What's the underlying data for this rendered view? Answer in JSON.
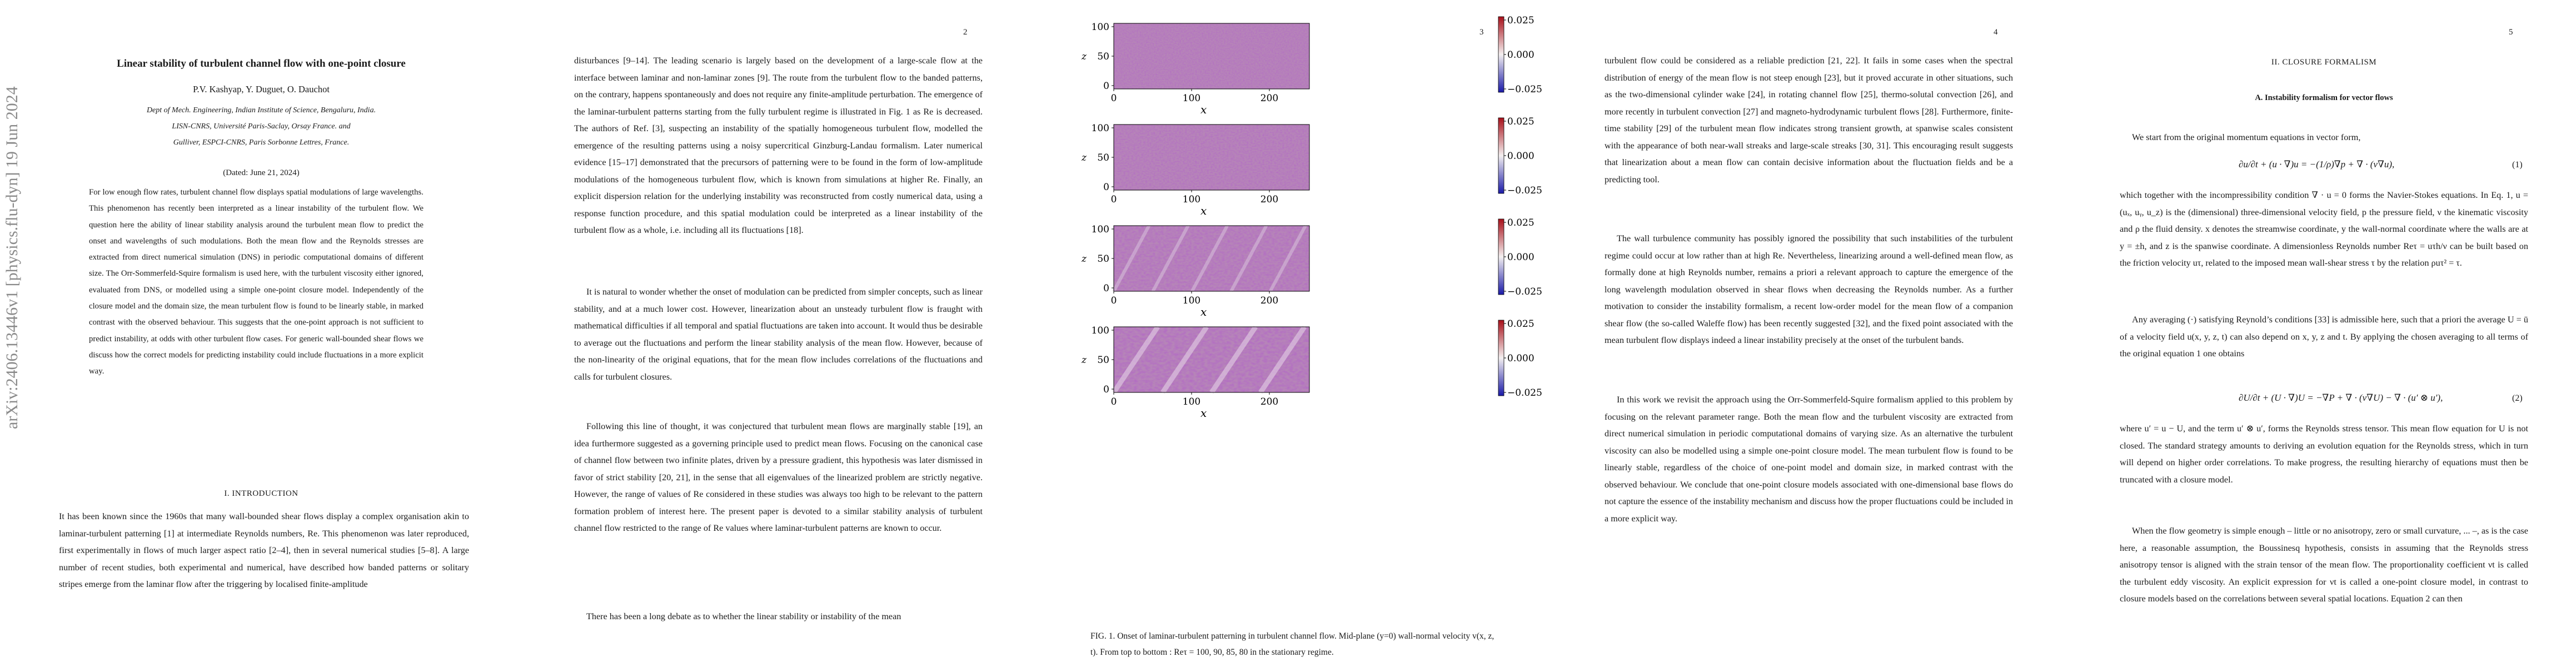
{
  "page1": {
    "arxiv_stamp": "arXiv:2406.13446v1  [physics.flu-dyn]  19 Jun 2024",
    "title": "Linear stability of turbulent channel flow with one-point closure",
    "authors": "P.V. Kashyap, Y. Duguet, O. Dauchot",
    "affiliations": [
      "Dept of Mech.  Engineering, Indian Institute of Science, Bengaluru, India.",
      "LISN-CNRS, Université Paris-Saclay, Orsay France. and",
      "Gulliver, ESPCI-CNRS, Paris Sorbonne Lettres, France."
    ],
    "dated": "(Dated: June 21, 2024)",
    "abstract": "For low enough flow rates, turbulent channel flow displays spatial modulations of large wavelengths. This phenomenon has recently been interpreted as a linear instability of the turbulent flow.  We question here the ability of linear stability analysis around the turbulent mean flow to predict the onset and wavelengths of such modulations. Both the mean flow and the Reynolds stresses are extracted from direct numerical simulation (DNS) in periodic computational domains of different size.  The Orr-Sommerfeld-Squire formalism is used here, with the turbulent viscosity either ignored, evaluated from DNS, or modelled using a simple one-point closure model. Independently of the closure model and the domain size, the mean turbulent flow is found to be linearly stable, in marked contrast with the observed behaviour.  This suggests that the one-point approach is not sufficient to predict instability, at odds with other turbulent flow cases. For generic wall-bounded shear flows we discuss how the correct models for predicting instability could include fluctuations in a more explicit way.",
    "section_heading": "I.   INTRODUCTION",
    "intro": "It has been known since the 1960s that many wall-bounded shear flows display a complex organisation akin to laminar-turbulent patterning [1] at intermediate Reynolds numbers, Re. This phenomenon was later reproduced, first experimentally in flows of much larger aspect ratio [2–4], then in several numerical studies [5–8]. A large number of recent studies, both experimental and numerical, have described how banded patterns or solitary stripes emerge from the laminar flow after the triggering by localised finite-amplitude"
  },
  "page2": {
    "page_number": "2",
    "para1": "disturbances [9–14]. The leading scenario is largely based on the development of a large-scale flow at the interface between laminar and non-laminar zones [9]. The route from the turbulent flow to the banded patterns, on the contrary, happens spontaneously and does not require any finite-amplitude perturbation. The emergence of the laminar-turbulent patterns starting from the fully turbulent regime is illustrated in Fig. 1 as Re is decreased. The authors of Ref. [3], suspecting an instability of the spatially homogeneous turbulent flow, modelled the emergence of the resulting patterns using a noisy supercritical Ginzburg-Landau formalism. Later numerical evidence [15–17] demonstrated that the precursors of patterning were to be found in the form of low-amplitude modulations of the homogeneous turbulent flow, which is known from simulations at higher Re. Finally, an explicit dispersion relation for the underlying instability was reconstructed from costly numerical data, using a response function procedure, and this spatial modulation could be interpreted as a linear instability of the turbulent flow as a whole, i.e. including all its fluctuations [18].",
    "para2": "It is natural to wonder whether the onset of modulation can be predicted from simpler concepts, such as linear stability, and at a much lower cost. However, linearization about an unsteady turbulent flow is fraught with mathematical difficulties if all temporal and spatial fluctuations are taken into account. It would thus be desirable to average out the fluctuations and perform the linear stability analysis of the mean flow. However, because of the non-linearity of the original equations, that for the mean flow includes correlations of the fluctuations and calls for turbulent closures.",
    "para3": "Following this line of thought, it was conjectured that turbulent mean flows are marginally stable [19], an idea furthermore suggested as a governing principle used to predict mean flows. Focusing on the canonical case of channel flow between two infinite plates, driven by a pressure gradient, this hypothesis was later dismissed in favor of strict stability [20, 21], in the sense that all eigenvalues of the linearized problem are strictly negative. However, the range of values of Re considered in these studies was always too high to be relevant to the pattern formation problem of interest here. The present paper is devoted to a similar stability analysis of turbulent channel flow restricted to the range of Re values where laminar-turbulent patterns are known to occur.",
    "para4": "There has been a long debate as to whether the linear stability or instability of the mean"
  },
  "page3": {
    "page_number": "3",
    "figure": {
      "y_axis_label": "z",
      "x_axis_label": "x",
      "x_ticks": [
        "0",
        "100",
        "200"
      ],
      "y_ticks": [
        "100",
        "50",
        "0"
      ],
      "colorbar_ticks": [
        "0.025",
        "0.000",
        "−0.025"
      ],
      "colors": {
        "low": "#1a1aa8",
        "mid": "#f4f0f0",
        "high": "#a8101a",
        "base": "#b685b8"
      },
      "panels": [
        {
          "name": "Re-100"
        },
        {
          "name": "Re-90"
        },
        {
          "name": "Re-85"
        },
        {
          "name": "Re-80"
        }
      ]
    },
    "caption": "FIG. 1.  Onset of laminar-turbulent patterning in turbulent channel flow.  Mid-plane (y=0) wall-normal velocity v(x, z, t). From top to bottom : Reτ = 100, 90, 85, 80 in the stationary regime."
  },
  "page4": {
    "page_number": "4",
    "para1": "turbulent flow could be considered as a reliable prediction [21, 22]. It fails in some cases when the spectral distribution of energy of the mean flow is not steep enough [23], but it proved accurate in other situations, such as the two-dimensional cylinder wake [24], in rotating channel flow [25], thermo-solutal convection [26], and more recently in turbulent convection [27] and magneto-hydrodynamic turbulent flows [28]. Furthermore, finite-time stability [29] of the turbulent mean flow indicates strong transient growth, at spanwise scales consistent with the appearance of both near-wall streaks and large-scale streaks [30, 31]. This encouraging result suggests that linearization about a mean flow can contain decisive information about the fluctuation fields and be a predicting tool.",
    "para2": "The wall turbulence community has possibly ignored the possibility that such instabilities of the turbulent regime could occur at low rather than at high Re. Nevertheless, linearizing around a well-defined mean flow, as formally done at high Reynolds number, remains a priori a relevant approach to capture the emergence of the long wavelength modulation observed in shear flows when decreasing the Reynolds number. As a further motivation to consider the instability formalism, a recent low-order model for the mean flow of a companion shear flow (the so-called Waleffe flow) has been recently suggested [32], and the fixed point associated with the mean turbulent flow displays indeed a linear instability precisely at the onset of the turbulent bands.",
    "para3": "In this work we revisit the approach using the Orr-Sommerfeld-Squire formalism applied to this problem by focusing on the relevant parameter range. Both the mean flow and the turbulent viscosity are extracted from direct numerical simulation in periodic computational domains of varying size. As an alternative the turbulent viscosity can also be modelled using a simple one-point closure model. The mean turbulent flow is found to be linearly stable, regardless of the choice of one-point model and domain size, in marked contrast with the observed behaviour. We conclude that one-point closure models associated with one-dimensional base flows do not capture the essence of the instability mechanism and discuss how the proper fluctuations could be included in a more explicit way."
  },
  "page5": {
    "page_number": "5",
    "section_heading": "II.   CLOSURE FORMALISM",
    "subsection_heading": "A.   Instability formalism for vector flows",
    "para1": "We start from the original momentum equations in vector form,",
    "eq1": "∂u/∂t + (u · ∇)u = −(1/ρ)∇p + ∇ · (ν∇u),",
    "eq1_num": "(1)",
    "para2": "which together with the incompressibility condition ∇ · u = 0 forms the Navier-Stokes equations. In Eq. 1, u = (uₓ, uᵧ, u_z) is the (dimensional) three-dimensional velocity field, p the pressure field, ν the kinematic viscosity and ρ the fluid density.  x denotes the streamwise coordinate, y the wall-normal coordinate where the walls are at y = ±h, and z is the spanwise coordinate. A dimensionless Reynolds number Reτ = uτh/ν can be built based on the friction velocity uτ, related to the imposed mean wall-shear stress τ by the relation ρuτ² = τ.",
    "para3": "Any averaging (·) satisfying Reynold’s conditions [33] is admissible here, such that a priori the average U = ū of a velocity field u(x, y, z, t) can also depend on x, y, z and t. By applying the chosen averaging to all terms of the original equation 1 one obtains",
    "eq2": "∂U/∂t + (U · ∇)U = −∇P + ∇ · (ν∇U) − ∇ · (u′ ⊗ u′),",
    "eq2_num": "(2)",
    "para4": "where u′ = u − U, and the term u′ ⊗ u′, forms the Reynolds stress tensor. This mean flow equation for U is not closed.  The standard strategy amounts to deriving an evolution equation for the Reynolds stress, which in turn will depend on higher order correlations. To make progress, the resulting hierarchy of equations must then be truncated with a closure model.",
    "para5": "When the flow geometry is simple enough – little or no anisotropy, zero or small curvature, ... –, as is the case here, a reasonable assumption, the Boussinesq hypothesis, consists in assuming that the Reynolds stress anisotropy tensor is aligned with the strain tensor of the mean flow.  The proportionality coefficient νt is called the turbulent eddy viscosity. An explicit expression for νt is called a one-point closure model, in contrast to closure models based on the correlations between several spatial locations.  Equation 2 can then"
  }
}
